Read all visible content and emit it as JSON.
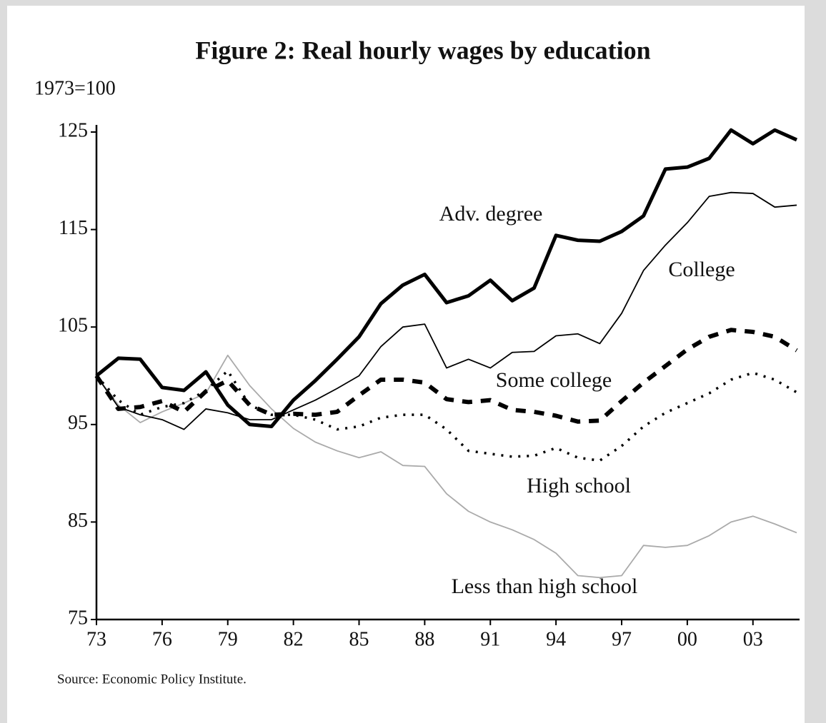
{
  "chart_data": {
    "type": "line",
    "title": "Figure 2:  Real hourly wages by education",
    "ylabel": "1973=100",
    "source": "Source: Economic Policy Institute.",
    "x": [
      1973,
      1974,
      1975,
      1976,
      1977,
      1978,
      1979,
      1980,
      1981,
      1982,
      1983,
      1984,
      1985,
      1986,
      1987,
      1988,
      1989,
      1990,
      1991,
      1992,
      1993,
      1994,
      1995,
      1996,
      1997,
      1998,
      1999,
      2000,
      2001,
      2002,
      2003,
      2004,
      2005
    ],
    "xlim": [
      1973,
      2005
    ],
    "xticks": [
      {
        "value": 1973,
        "label": "73"
      },
      {
        "value": 1976,
        "label": "76"
      },
      {
        "value": 1979,
        "label": "79"
      },
      {
        "value": 1982,
        "label": "82"
      },
      {
        "value": 1985,
        "label": "85"
      },
      {
        "value": 1988,
        "label": "88"
      },
      {
        "value": 1991,
        "label": "91"
      },
      {
        "value": 1994,
        "label": "94"
      },
      {
        "value": 1997,
        "label": "97"
      },
      {
        "value": 2000,
        "label": "00"
      },
      {
        "value": 2003,
        "label": "03"
      }
    ],
    "ylim": [
      75,
      125
    ],
    "yticks": [
      75,
      85,
      95,
      105,
      115,
      125
    ],
    "grid": false,
    "series": [
      {
        "name": "Adv. degree",
        "color": "#000000",
        "style": "thick",
        "values": [
          100,
          101.8,
          101.7,
          98.8,
          98.5,
          100.4,
          97,
          95,
          94.8,
          97.5,
          99.5,
          101.7,
          104,
          107.4,
          109.3,
          110.4,
          107.5,
          108.2,
          109.8,
          107.7,
          109,
          114.4,
          113.9,
          113.8,
          114.8,
          116.4,
          121.2,
          121.4,
          122.3,
          125.2,
          123.8,
          125.2,
          124.2
        ]
      },
      {
        "name": "College",
        "color": "#000000",
        "style": "thin",
        "values": [
          100,
          96.8,
          96,
          95.5,
          94.5,
          96.6,
          96.2,
          95.5,
          95.5,
          96.5,
          97.5,
          98.7,
          100,
          103,
          105,
          105.3,
          100.8,
          101.7,
          100.8,
          102.4,
          102.5,
          104.1,
          104.3,
          103.3,
          106.4,
          110.8,
          113.4,
          115.7,
          118.4,
          118.8,
          118.7,
          117.3,
          117.5
        ]
      },
      {
        "name": "Some college",
        "color": "#000000",
        "style": "dashed",
        "values": [
          100,
          96.6,
          96.8,
          97.4,
          96.3,
          98.4,
          99.5,
          97,
          96,
          96.1,
          96,
          96.3,
          98,
          99.6,
          99.6,
          99.3,
          97.6,
          97.3,
          97.5,
          96.5,
          96.3,
          95.9,
          95.3,
          95.4,
          97.4,
          99.3,
          101,
          102.7,
          104,
          104.7,
          104.5,
          104,
          102.6
        ]
      },
      {
        "name": "High school",
        "color": "#000000",
        "style": "dotted",
        "values": [
          100,
          97.5,
          96,
          96.8,
          97.2,
          98.5,
          100.5,
          97,
          96,
          96,
          95.5,
          94.5,
          94.8,
          95.7,
          96,
          96,
          94.5,
          92.3,
          92,
          91.7,
          91.8,
          92.6,
          91.6,
          91.3,
          92.8,
          94.8,
          96.2,
          97.2,
          98.2,
          99.6,
          100.3,
          99.6,
          98.3
        ]
      },
      {
        "name": "Less than high school",
        "color": "#aaaaaa",
        "style": "thin",
        "values": [
          100,
          97,
          95.2,
          96.3,
          97.2,
          98.2,
          102.1,
          99,
          96.6,
          94.6,
          93.2,
          92.3,
          91.6,
          92.2,
          90.8,
          90.7,
          87.9,
          86.1,
          85,
          84.2,
          83.2,
          81.8,
          79.5,
          79.3,
          79.5,
          82.6,
          82.4,
          82.6,
          83.6,
          85,
          85.6,
          84.8,
          83.9
        ]
      }
    ]
  }
}
